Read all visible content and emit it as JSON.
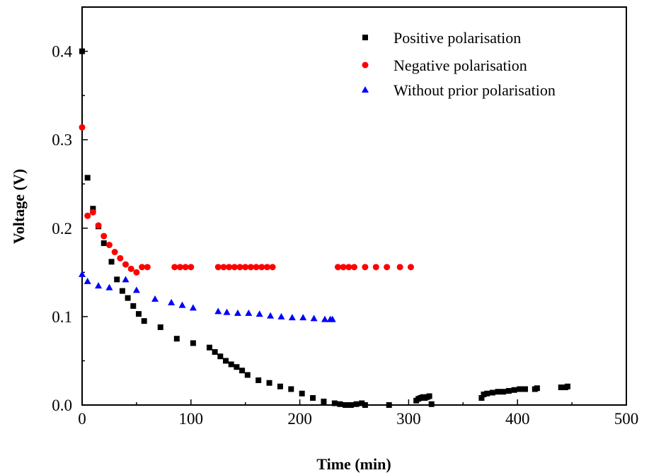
{
  "chart_data": {
    "type": "scatter",
    "title": "",
    "xlabel": "Time (min)",
    "ylabel": "Voltage (V)",
    "xlim": [
      0,
      500
    ],
    "ylim": [
      0,
      0.45
    ],
    "x_ticks": [
      0,
      100,
      200,
      300,
      400,
      500
    ],
    "x_tick_labels": [
      "0",
      "100",
      "200",
      "300",
      "400",
      "500"
    ],
    "y_ticks": [
      0,
      0.1,
      0.2,
      0.3,
      0.4
    ],
    "y_tick_labels": [
      "0.0",
      "0.1",
      "0.2",
      "0.3",
      "0.4"
    ],
    "grid": false,
    "legend_position": "top-right",
    "series": [
      {
        "name": "Positive polarisation",
        "marker": "square",
        "color": "#000000",
        "points": [
          [
            0,
            0.4
          ],
          [
            5,
            0.257
          ],
          [
            10,
            0.222
          ],
          [
            15,
            0.202
          ],
          [
            20,
            0.183
          ],
          [
            27,
            0.162
          ],
          [
            32,
            0.142
          ],
          [
            37,
            0.129
          ],
          [
            42,
            0.121
          ],
          [
            47,
            0.112
          ],
          [
            52,
            0.103
          ],
          [
            57,
            0.095
          ],
          [
            72,
            0.088
          ],
          [
            87,
            0.075
          ],
          [
            102,
            0.07
          ],
          [
            117,
            0.065
          ],
          [
            122,
            0.06
          ],
          [
            127,
            0.055
          ],
          [
            132,
            0.05
          ],
          [
            137,
            0.046
          ],
          [
            142,
            0.043
          ],
          [
            147,
            0.039
          ],
          [
            152,
            0.034
          ],
          [
            162,
            0.028
          ],
          [
            172,
            0.025
          ],
          [
            182,
            0.021
          ],
          [
            192,
            0.018
          ],
          [
            202,
            0.013
          ],
          [
            212,
            0.008
          ],
          [
            222,
            0.004
          ],
          [
            232,
            0.002
          ],
          [
            237,
            0.001
          ],
          [
            242,
            0.0
          ],
          [
            247,
            0.0
          ],
          [
            252,
            0.001
          ],
          [
            257,
            0.002
          ],
          [
            260,
            0.0
          ],
          [
            282,
            0.0
          ],
          [
            307,
            0.005
          ],
          [
            309,
            0.007
          ],
          [
            311,
            0.008
          ],
          [
            313,
            0.009
          ],
          [
            315,
            0.008
          ],
          [
            317,
            0.009
          ],
          [
            319,
            0.01
          ],
          [
            321,
            0.001
          ],
          [
            367,
            0.008
          ],
          [
            369,
            0.012
          ],
          [
            372,
            0.013
          ],
          [
            377,
            0.014
          ],
          [
            382,
            0.015
          ],
          [
            387,
            0.015
          ],
          [
            392,
            0.016
          ],
          [
            397,
            0.017
          ],
          [
            402,
            0.018
          ],
          [
            407,
            0.018
          ],
          [
            416,
            0.018
          ],
          [
            418,
            0.019
          ],
          [
            440,
            0.02
          ],
          [
            444,
            0.02
          ],
          [
            446,
            0.021
          ]
        ]
      },
      {
        "name": "Negative polarisation",
        "marker": "circle",
        "color": "#ff0000",
        "points": [
          [
            0,
            0.314
          ],
          [
            5,
            0.214
          ],
          [
            10,
            0.218
          ],
          [
            15,
            0.203
          ],
          [
            20,
            0.191
          ],
          [
            25,
            0.181
          ],
          [
            30,
            0.173
          ],
          [
            35,
            0.166
          ],
          [
            40,
            0.159
          ],
          [
            45,
            0.154
          ],
          [
            50,
            0.15
          ],
          [
            55,
            0.156
          ],
          [
            60,
            0.156
          ],
          [
            85,
            0.156
          ],
          [
            90,
            0.156
          ],
          [
            95,
            0.156
          ],
          [
            100,
            0.156
          ],
          [
            125,
            0.156
          ],
          [
            130,
            0.156
          ],
          [
            135,
            0.156
          ],
          [
            140,
            0.156
          ],
          [
            145,
            0.156
          ],
          [
            150,
            0.156
          ],
          [
            155,
            0.156
          ],
          [
            160,
            0.156
          ],
          [
            165,
            0.156
          ],
          [
            170,
            0.156
          ],
          [
            175,
            0.156
          ],
          [
            235,
            0.156
          ],
          [
            240,
            0.156
          ],
          [
            245,
            0.156
          ],
          [
            250,
            0.156
          ],
          [
            260,
            0.156
          ],
          [
            270,
            0.156
          ],
          [
            280,
            0.156
          ],
          [
            292,
            0.156
          ],
          [
            302,
            0.156
          ]
        ]
      },
      {
        "name": "Without prior polarisation",
        "marker": "triangle",
        "color": "#0000ff",
        "points": [
          [
            0,
            0.148
          ],
          [
            5,
            0.14
          ],
          [
            15,
            0.135
          ],
          [
            25,
            0.133
          ],
          [
            40,
            0.142
          ],
          [
            50,
            0.13
          ],
          [
            67,
            0.12
          ],
          [
            82,
            0.116
          ],
          [
            92,
            0.113
          ],
          [
            102,
            0.11
          ],
          [
            125,
            0.106
          ],
          [
            133,
            0.105
          ],
          [
            143,
            0.104
          ],
          [
            153,
            0.104
          ],
          [
            163,
            0.103
          ],
          [
            173,
            0.101
          ],
          [
            183,
            0.1
          ],
          [
            193,
            0.099
          ],
          [
            203,
            0.099
          ],
          [
            213,
            0.098
          ],
          [
            223,
            0.097
          ],
          [
            228,
            0.097
          ],
          [
            230,
            0.097
          ]
        ]
      }
    ]
  }
}
